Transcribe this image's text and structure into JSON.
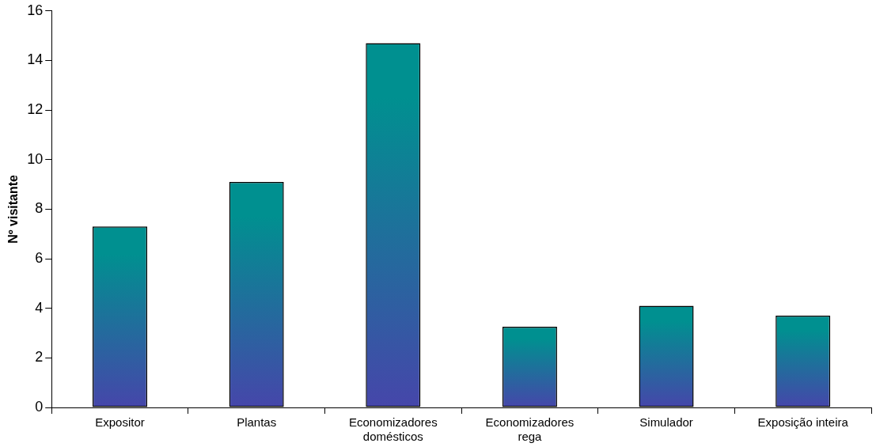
{
  "chart_data": {
    "type": "bar",
    "ylabel": "Nº visitante",
    "categories": [
      "Expositor",
      "Plantas",
      "Economizadores domésticos",
      "Economizadores rega",
      "Simulador",
      "Exposição inteira"
    ],
    "values": [
      7.3,
      9.1,
      14.7,
      3.26,
      4.1,
      3.7
    ],
    "color": "#009090",
    "ylim": [
      0,
      16
    ],
    "yticks": [
      0,
      2,
      4,
      6,
      8,
      10,
      12,
      14,
      16
    ],
    "grid": false,
    "legend": false
  }
}
